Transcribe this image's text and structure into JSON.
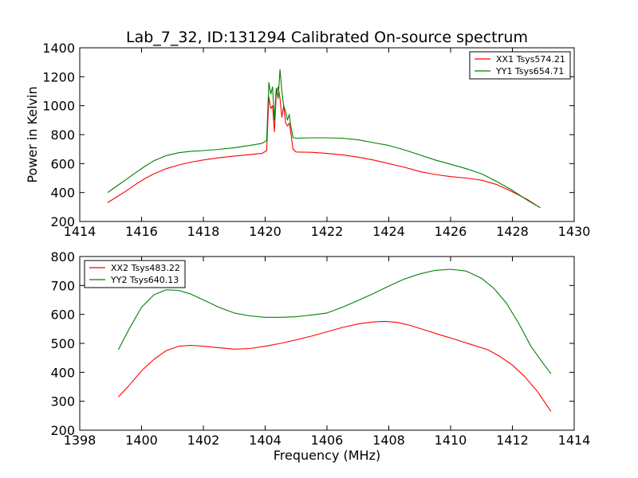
{
  "title": "Lab_7_32, ID:131294 Calibrated On-source spectrum",
  "chart_data": [
    {
      "type": "line",
      "ylabel": "Power in Kelvin",
      "xlabel": "",
      "xlim": [
        1414,
        1430
      ],
      "ylim": [
        200,
        1400
      ],
      "xticks": [
        1414,
        1416,
        1418,
        1420,
        1422,
        1424,
        1426,
        1428,
        1430
      ],
      "yticks": [
        200,
        400,
        600,
        800,
        1000,
        1200,
        1400
      ],
      "grid": false,
      "legend_position": "top-right",
      "series": [
        {
          "name": "XX1 Tsys574.21",
          "color": "#ff0000",
          "x": [
            1414.9,
            1415.2,
            1415.5,
            1415.8,
            1416.1,
            1416.4,
            1416.8,
            1417.2,
            1417.6,
            1418.0,
            1418.5,
            1419.0,
            1419.5,
            1419.9,
            1420.05,
            1420.12,
            1420.18,
            1420.24,
            1420.3,
            1420.36,
            1420.42,
            1420.48,
            1420.54,
            1420.6,
            1420.66,
            1420.72,
            1420.78,
            1420.84,
            1420.9,
            1421.0,
            1421.5,
            1422.0,
            1422.5,
            1423.0,
            1423.5,
            1424.0,
            1424.5,
            1425.0,
            1425.5,
            1426.0,
            1426.5,
            1427.0,
            1427.5,
            1428.0,
            1428.5,
            1428.9
          ],
          "y": [
            330,
            370,
            410,
            455,
            495,
            530,
            565,
            590,
            610,
            625,
            640,
            652,
            662,
            670,
            690,
            1060,
            980,
            1000,
            820,
            1080,
            1130,
            1050,
            920,
            1000,
            880,
            860,
            880,
            800,
            700,
            680,
            678,
            670,
            660,
            645,
            625,
            600,
            575,
            545,
            525,
            510,
            500,
            485,
            455,
            405,
            350,
            295
          ]
        },
        {
          "name": "YY1 Tsys654.71",
          "color": "#008000",
          "x": [
            1414.9,
            1415.2,
            1415.5,
            1415.8,
            1416.1,
            1416.4,
            1416.8,
            1417.2,
            1417.6,
            1418.0,
            1418.5,
            1419.0,
            1419.5,
            1419.9,
            1420.05,
            1420.12,
            1420.18,
            1420.24,
            1420.3,
            1420.36,
            1420.42,
            1420.48,
            1420.54,
            1420.6,
            1420.66,
            1420.72,
            1420.78,
            1420.84,
            1420.9,
            1421.0,
            1421.5,
            1422.0,
            1422.5,
            1423.0,
            1423.5,
            1424.0,
            1424.5,
            1425.0,
            1425.5,
            1426.0,
            1426.5,
            1427.0,
            1427.5,
            1428.0,
            1428.5,
            1428.9
          ],
          "y": [
            400,
            445,
            490,
            535,
            580,
            620,
            655,
            675,
            685,
            690,
            698,
            710,
            725,
            740,
            760,
            1160,
            1080,
            1130,
            900,
            1120,
            1050,
            1250,
            1100,
            1000,
            960,
            900,
            940,
            850,
            780,
            775,
            778,
            778,
            775,
            765,
            745,
            725,
            695,
            660,
            625,
            595,
            565,
            530,
            475,
            415,
            345,
            295
          ]
        }
      ]
    },
    {
      "type": "line",
      "ylabel": "",
      "xlabel": "Frequency (MHz)",
      "xlim": [
        1398,
        1414
      ],
      "ylim": [
        200,
        800
      ],
      "xticks": [
        1398,
        1400,
        1402,
        1404,
        1406,
        1408,
        1410,
        1412,
        1414
      ],
      "yticks": [
        200,
        300,
        400,
        500,
        600,
        700,
        800
      ],
      "grid": false,
      "legend_position": "top-left",
      "series": [
        {
          "name": "XX2 Tsys483.22",
          "color": "#ff0000",
          "x": [
            1399.25,
            1399.6,
            1400.0,
            1400.4,
            1400.8,
            1401.2,
            1401.6,
            1402.0,
            1402.5,
            1403.0,
            1403.5,
            1404.0,
            1404.5,
            1405.0,
            1405.5,
            1406.0,
            1406.5,
            1407.0,
            1407.5,
            1407.9,
            1408.3,
            1408.7,
            1409.2,
            1409.7,
            1410.2,
            1410.7,
            1411.2,
            1411.6,
            1412.0,
            1412.4,
            1412.8,
            1413.25
          ],
          "y": [
            315,
            355,
            405,
            445,
            475,
            490,
            493,
            490,
            485,
            480,
            482,
            490,
            500,
            512,
            525,
            540,
            555,
            567,
            574,
            576,
            572,
            562,
            545,
            528,
            512,
            495,
            478,
            455,
            425,
            385,
            335,
            265
          ]
        },
        {
          "name": "YY2 Tsys640.13",
          "color": "#008000",
          "x": [
            1399.25,
            1399.6,
            1400.0,
            1400.4,
            1400.8,
            1401.2,
            1401.6,
            1402.0,
            1402.5,
            1403.0,
            1403.5,
            1404.0,
            1404.5,
            1405.0,
            1405.5,
            1406.0,
            1406.5,
            1407.0,
            1407.5,
            1408.0,
            1408.5,
            1409.0,
            1409.5,
            1410.0,
            1410.5,
            1411.0,
            1411.4,
            1411.8,
            1412.2,
            1412.6,
            1413.0,
            1413.25
          ],
          "y": [
            478,
            550,
            625,
            668,
            685,
            683,
            670,
            650,
            625,
            605,
            595,
            590,
            590,
            592,
            598,
            605,
            625,
            648,
            672,
            698,
            722,
            740,
            752,
            756,
            750,
            725,
            690,
            640,
            570,
            490,
            430,
            395
          ]
        }
      ]
    }
  ]
}
